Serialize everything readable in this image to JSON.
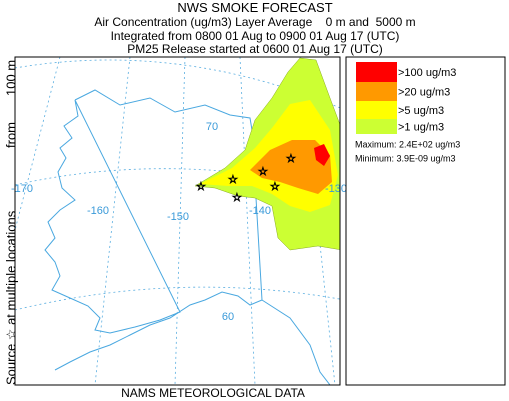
{
  "header": {
    "title": "NWS SMOKE FORECAST",
    "lines": [
      "Air Concentration (ug/m3) Layer Average    0 m and  5000 m",
      "Integrated from 0800 01 Aug to 0900 01 Aug 17 (UTC)",
      "PM25 Release started at 0600 01 Aug 17 (UTC)"
    ]
  },
  "source_label": {
    "parts": [
      "Source ☆ at multiple locations",
      "from",
      "100 m"
    ]
  },
  "map": {
    "labels": [
      "70",
      "-170",
      "-160",
      "-150",
      "-140",
      "-130",
      "60"
    ]
  },
  "legend": {
    "items": [
      {
        "label": ">100 ug/m3",
        "color": "#ff0000"
      },
      {
        "label": ">20 ug/m3",
        "color": "#ff9900"
      },
      {
        "label": ">5 ug/m3",
        "color": "#ffff00"
      },
      {
        "label": ">1 ug/m3",
        "color": "#ccff33"
      }
    ],
    "maximum": "Maximum: 2.4E+02 ug/m3",
    "minimum": "Minimum: 3.9E-09 ug/m3"
  },
  "footer": "NAMS METEOROLOGICAL DATA"
}
